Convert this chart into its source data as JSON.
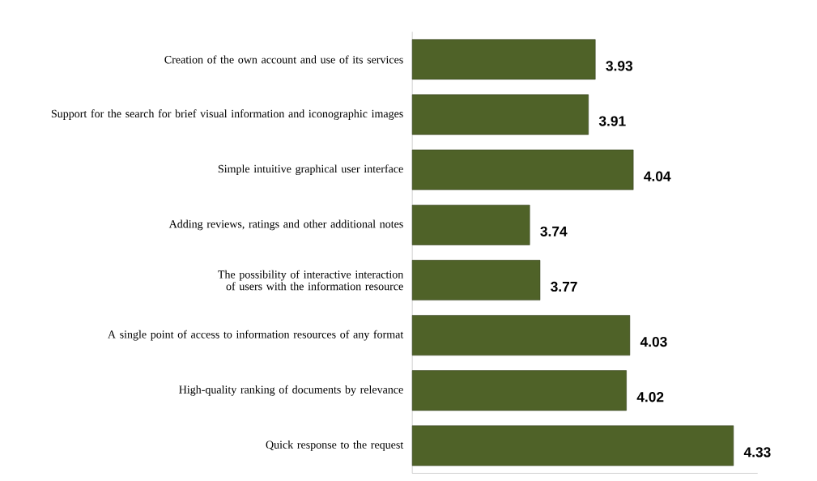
{
  "chart_data": {
    "type": "bar",
    "orientation": "horizontal",
    "categories": [
      "Creation of the own account and use of its services",
      "Support for the search for brief visual information and iconographic images",
      "Simple intuitive graphical user interface",
      "Adding reviews, ratings and other additional notes",
      "The possibility of interactive interaction of users with the information resource",
      "A single point of access to information resources of any format",
      "High-quality ranking of documents by relevance",
      "Quick response to the request"
    ],
    "values": [
      3.93,
      3.91,
      4.04,
      3.74,
      3.77,
      4.03,
      4.02,
      4.33
    ],
    "color": "#4f6228",
    "data_labels": true,
    "xlim": [
      3.4,
      4.4
    ]
  }
}
